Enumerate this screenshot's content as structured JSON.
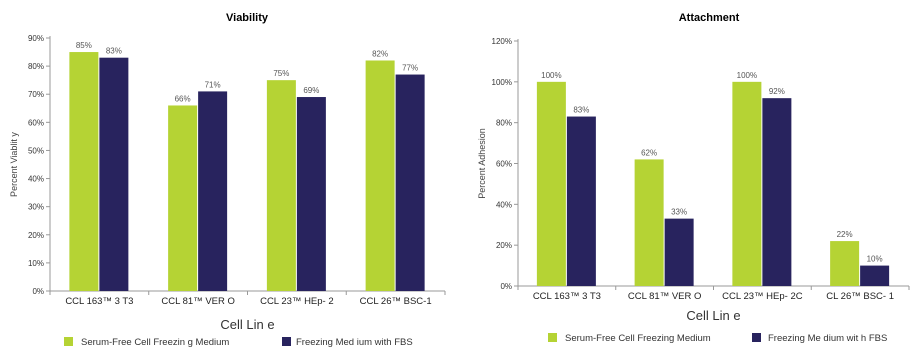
{
  "charts": [
    {
      "type": "bar",
      "title": "Viability",
      "ylabel": "Percent Viablit  y",
      "xlabel": "Cell Lin e",
      "categories": [
        "CCL 163™ 3 T3",
        "CCL 81™ VER O",
        "CCL 23™ HEp- 2",
        "CCL 26™ BSC-1"
      ],
      "ylim": [
        0,
        90
      ],
      "yticks": [
        0,
        10,
        20,
        30,
        40,
        50,
        60,
        70,
        80,
        90
      ],
      "tick_labels": [
        "0%",
        "10%",
        "20%",
        "30%",
        "40%",
        "50%",
        "60%",
        "70%",
        "80%",
        "90%"
      ],
      "series": [
        {
          "name": "Serum-Free Cell Freezin  g Medium",
          "color": "#b5d334",
          "values": [
            85,
            66,
            75,
            82
          ],
          "labels": [
            "85%",
            "66%",
            "75%",
            "82%"
          ]
        },
        {
          "name": "Freezing Med ium with FBS",
          "color": "#28235e",
          "values": [
            83,
            71,
            69,
            77
          ],
          "labels": [
            "83%",
            "71%",
            "69%",
            "77%"
          ]
        }
      ],
      "grid": false,
      "legend": "bottom"
    },
    {
      "type": "bar",
      "title": "Attachment",
      "ylabel": "Percent Adhesion",
      "xlabel": "Cell Lin e",
      "categories": [
        "CCL 163™ 3 T3",
        "CCL 81™ VER O",
        "CCL 23™ HEp- 2C",
        "CL 26™ BSC- 1"
      ],
      "ylim": [
        0,
        120
      ],
      "yticks": [
        0,
        20,
        40,
        60,
        80,
        100,
        120
      ],
      "tick_labels": [
        "0%",
        "20%",
        "40%",
        "60%",
        "80%",
        "100%",
        "120%"
      ],
      "series": [
        {
          "name": "Serum-Free Cell Freezing    Medium",
          "color": "#b5d334",
          "values": [
            100,
            62,
            100,
            22
          ],
          "labels": [
            "100%",
            "62%",
            "100%",
            "22%"
          ]
        },
        {
          "name": "Freezing Me dium wit h FBS",
          "color": "#28235e",
          "values": [
            83,
            33,
            92,
            10
          ],
          "labels": [
            "83%",
            "33%",
            "92%",
            "10%"
          ]
        }
      ],
      "grid": false,
      "legend": "bottom"
    }
  ]
}
